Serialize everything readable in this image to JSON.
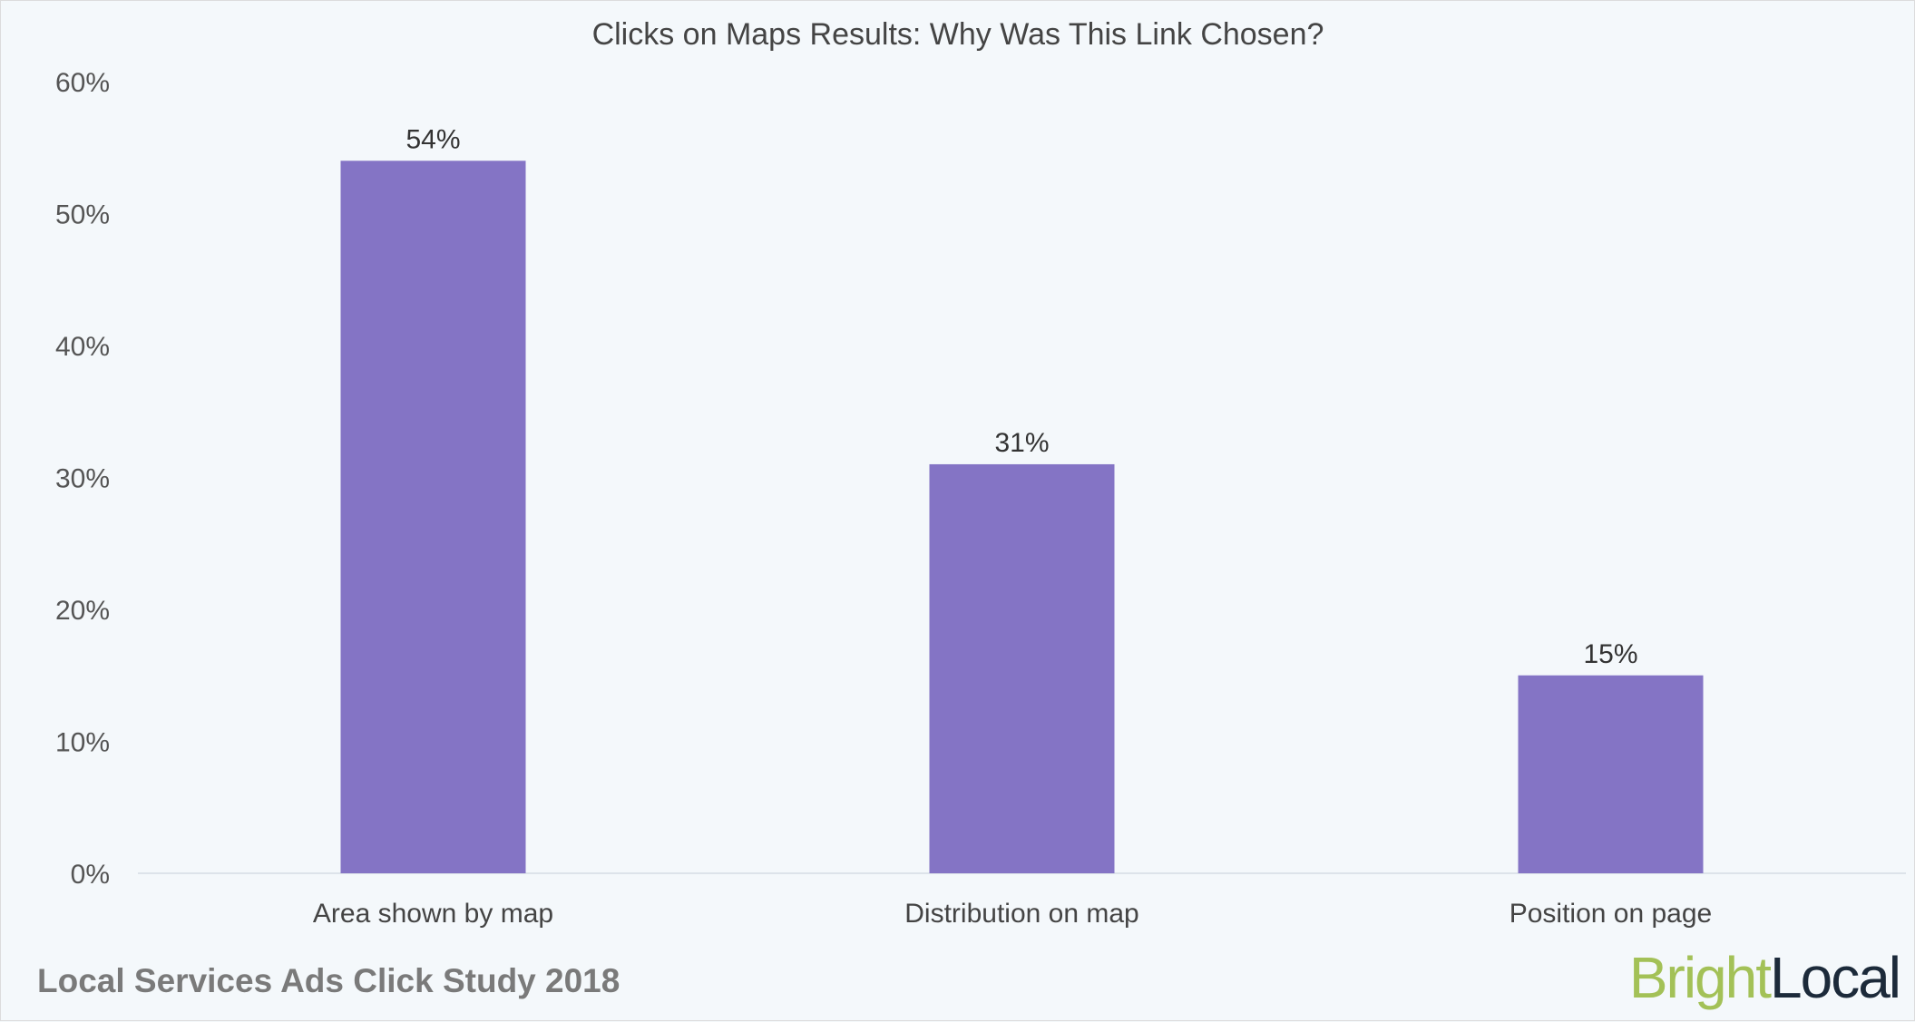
{
  "chart_data": {
    "type": "bar",
    "title": "Clicks on Maps Results: Why Was This Link Chosen?",
    "categories": [
      "Area shown by map",
      "Distribution on map",
      "Position on page"
    ],
    "values": [
      54,
      31,
      15
    ],
    "data_labels": [
      "54%",
      "31%",
      "15%"
    ],
    "xlabel": "",
    "ylabel": "",
    "ylim": [
      0,
      60
    ],
    "yticks": [
      0,
      10,
      20,
      30,
      40,
      50,
      60
    ],
    "ytick_labels": [
      "0%",
      "10%",
      "20%",
      "30%",
      "40%",
      "50%",
      "60%"
    ],
    "grid": false,
    "legend": "none",
    "bar_color": "#8474c5"
  },
  "footer": {
    "study": "Local Services Ads Click Study 2018",
    "logo_part1": "Bright",
    "logo_part2": "Local"
  },
  "colors": {
    "background": "#f4f8fb",
    "logo_green": "#a3c157",
    "logo_dark": "#1c2a3a"
  }
}
